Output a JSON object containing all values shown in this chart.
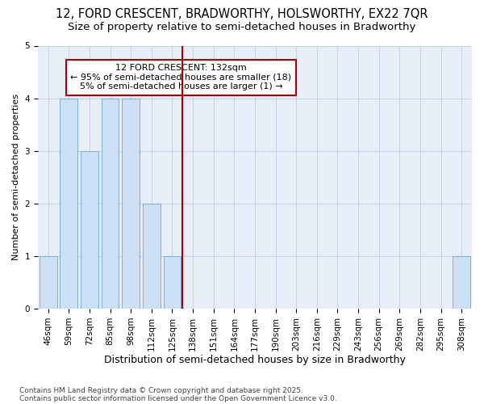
{
  "title_line1": "12, FORD CRESCENT, BRADWORTHY, HOLSWORTHY, EX22 7QR",
  "title_line2": "Size of property relative to semi-detached houses in Bradworthy",
  "xlabel": "Distribution of semi-detached houses by size in Bradworthy",
  "ylabel": "Number of semi-detached properties",
  "categories": [
    "46sqm",
    "59sqm",
    "72sqm",
    "85sqm",
    "98sqm",
    "112sqm",
    "125sqm",
    "138sqm",
    "151sqm",
    "164sqm",
    "177sqm",
    "190sqm",
    "203sqm",
    "216sqm",
    "229sqm",
    "243sqm",
    "256sqm",
    "269sqm",
    "282sqm",
    "295sqm",
    "308sqm"
  ],
  "values": [
    1,
    4,
    3,
    4,
    4,
    2,
    1,
    0,
    0,
    0,
    0,
    0,
    0,
    0,
    0,
    0,
    0,
    0,
    0,
    0,
    1
  ],
  "bar_color": "#cce0f5",
  "bar_edgecolor": "#7aafd4",
  "vline_x": 7.0,
  "vline_color": "#aa0000",
  "annotation_text": "12 FORD CRESCENT: 132sqm\n← 95% of semi-detached houses are smaller (18)\n5% of semi-detached houses are larger (1) →",
  "annotation_box_color": "white",
  "annotation_box_edgecolor": "#aa0000",
  "ylim": [
    0,
    5
  ],
  "yticks": [
    0,
    1,
    2,
    3,
    4,
    5
  ],
  "footnote_line1": "Contains HM Land Registry data © Crown copyright and database right 2025.",
  "footnote_line2": "Contains public sector information licensed under the Open Government Licence v3.0.",
  "bg_color": "#ffffff",
  "plot_bg_color": "#e8eef8",
  "title_fontsize": 10.5,
  "subtitle_fontsize": 9.5,
  "xlabel_fontsize": 9,
  "ylabel_fontsize": 8,
  "tick_fontsize": 7.5,
  "footnote_fontsize": 6.5,
  "annotation_fontsize": 8
}
